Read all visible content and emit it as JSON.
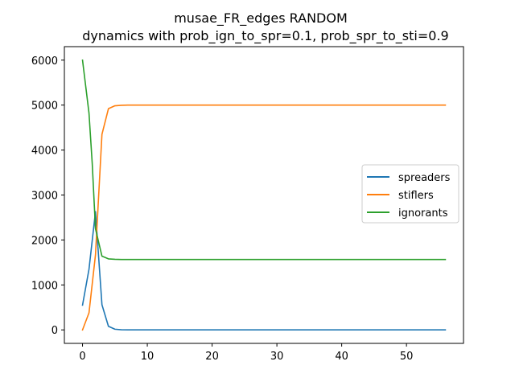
{
  "chart_data": {
    "type": "line",
    "title": "musae_FR_edges RANDOM",
    "subtitle": "dynamics with prob_ign_to_spr=0.1, prob_spr_to_sti=0.9",
    "xlabel": "",
    "ylabel": "",
    "xlim": [
      -2.8,
      58.8
    ],
    "ylim": [
      -300,
      6300
    ],
    "xticks": [
      0,
      10,
      20,
      30,
      40,
      50
    ],
    "yticks": [
      0,
      1000,
      2000,
      3000,
      4000,
      5000,
      6000
    ],
    "grid": false,
    "legend_position": "center-right",
    "x_max": 56,
    "series": [
      {
        "name": "spreaders",
        "color": "#1f77b4",
        "points": [
          [
            0,
            550
          ],
          [
            1,
            1350
          ],
          [
            2,
            2630
          ],
          [
            3,
            560
          ],
          [
            4,
            80
          ],
          [
            5,
            15
          ],
          [
            6,
            3
          ],
          [
            7,
            1
          ],
          [
            56,
            0
          ]
        ]
      },
      {
        "name": "stiflers",
        "color": "#ff7f0e",
        "points": [
          [
            0,
            0
          ],
          [
            1,
            380
          ],
          [
            2,
            1670
          ],
          [
            3,
            4350
          ],
          [
            4,
            4920
          ],
          [
            5,
            4985
          ],
          [
            6,
            4995
          ],
          [
            7,
            5000
          ],
          [
            56,
            5000
          ]
        ]
      },
      {
        "name": "ignorants",
        "color": "#2ca02c",
        "points": [
          [
            0,
            6000
          ],
          [
            1,
            4820
          ],
          [
            1.5,
            3700
          ],
          [
            2,
            2250
          ],
          [
            3,
            1640
          ],
          [
            4,
            1580
          ],
          [
            5,
            1570
          ],
          [
            6,
            1565
          ],
          [
            56,
            1565
          ]
        ]
      }
    ]
  }
}
